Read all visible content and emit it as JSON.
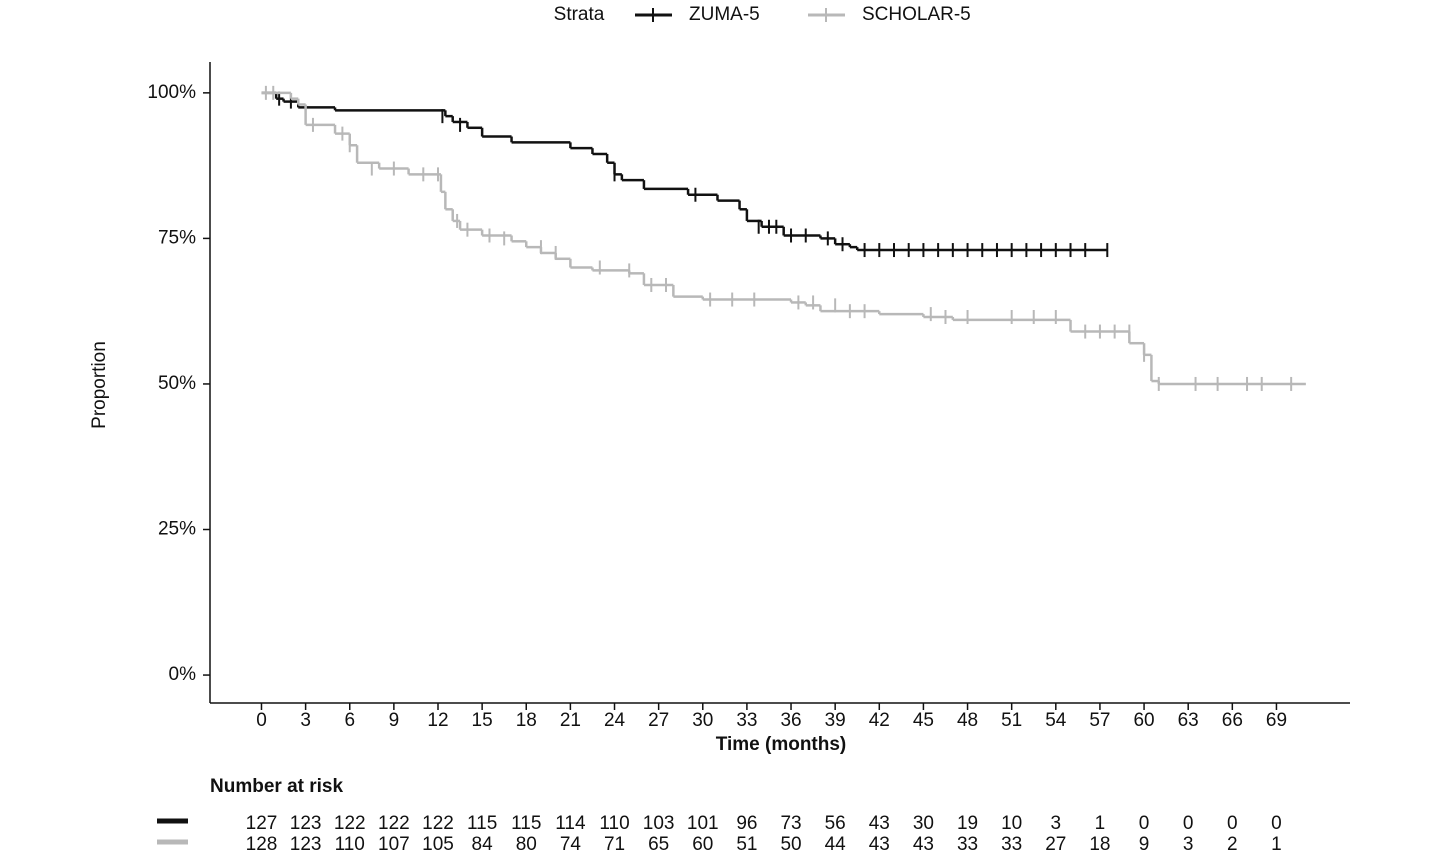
{
  "chart_data": {
    "type": "step",
    "legend_title": "Strata",
    "x_label": "Time (months)",
    "y_label": "Proportion",
    "xlim": [
      -3.5,
      74
    ],
    "ylim": [
      -4.8,
      105.3
    ],
    "xticks": [
      0,
      3,
      6,
      9,
      12,
      15,
      18,
      21,
      24,
      27,
      30,
      33,
      36,
      39,
      42,
      45,
      48,
      51,
      54,
      57,
      60,
      63,
      66,
      69
    ],
    "yticks": [
      {
        "value": 0,
        "label": "0%"
      },
      {
        "value": 25,
        "label": "25%"
      },
      {
        "value": 50,
        "label": "50%"
      },
      {
        "value": 75,
        "label": "75%"
      },
      {
        "value": 100,
        "label": "100%"
      }
    ],
    "series": [
      {
        "name": "ZUMA-5",
        "color": "#111111",
        "x": [
          0,
          1,
          1.5,
          2.5,
          5,
          12.5,
          13,
          14,
          15,
          17,
          21,
          22.5,
          23.5,
          24,
          24.5,
          26,
          29,
          31,
          32.5,
          33,
          34,
          35.5,
          38,
          39,
          40,
          40.5,
          57.5
        ],
        "values": [
          100,
          99,
          98.5,
          97.5,
          97,
          96,
          95,
          94,
          92.5,
          91.5,
          90.5,
          89.5,
          88,
          86,
          85,
          83.5,
          82.5,
          81.5,
          80,
          78,
          77,
          75.5,
          75,
          74,
          73.5,
          73,
          73
        ],
        "censor_x": [
          1.2,
          2,
          12.3,
          13.5,
          24,
          29.5,
          33.8,
          34.5,
          35,
          36,
          37,
          38.5,
          39.5,
          41,
          42,
          43,
          44,
          45,
          46,
          47,
          48,
          49,
          50,
          51,
          52,
          53,
          54,
          55,
          56,
          57.5
        ],
        "censor_values": [
          99,
          98.5,
          96,
          94.5,
          86,
          82.5,
          77,
          77,
          77,
          75.5,
          75.5,
          75,
          74,
          73,
          73,
          73,
          73,
          73,
          73,
          73,
          73,
          73,
          73,
          73,
          73,
          73,
          73,
          73,
          73,
          73
        ]
      },
      {
        "name": "SCHOLAR-5",
        "color": "#b8b8b8",
        "x": [
          0,
          2,
          2.5,
          3,
          5,
          6,
          6.5,
          8,
          10,
          12.2,
          12.5,
          13,
          13.5,
          15,
          17,
          18,
          19,
          20,
          21,
          22.5,
          25,
          26,
          28,
          30,
          36,
          37,
          38,
          42,
          45,
          47,
          55,
          59,
          60,
          60.5,
          61,
          71
        ],
        "values": [
          100,
          99,
          98,
          94.5,
          93,
          91,
          88,
          87,
          86,
          83,
          80,
          78,
          76.5,
          75.5,
          74.5,
          73.5,
          72.5,
          71.5,
          70,
          69.5,
          69,
          67,
          65,
          64.5,
          64,
          63.5,
          62.5,
          62,
          61.5,
          61,
          59,
          57,
          55,
          50.5,
          50,
          50
        ],
        "censor_x": [
          0.3,
          0.8,
          3.5,
          5.5,
          6,
          7.5,
          9,
          11,
          12,
          13.3,
          14,
          15.5,
          16.5,
          19,
          20,
          23,
          25,
          26.5,
          27.5,
          30.5,
          32,
          33.5,
          36.5,
          37.5,
          39,
          40,
          41,
          45.5,
          46.5,
          48,
          51,
          52.5,
          54,
          56,
          57,
          58,
          59,
          60,
          61,
          63.5,
          65,
          67,
          68,
          70
        ],
        "censor_values": [
          100,
          100,
          94.5,
          93,
          91,
          87,
          87,
          86,
          86,
          78,
          76.5,
          75.5,
          75,
          73.5,
          72.5,
          70,
          69.5,
          67,
          67,
          64.5,
          64.5,
          64.5,
          64,
          64,
          63.5,
          62.5,
          62.5,
          62,
          61.5,
          61.5,
          61.5,
          61.5,
          61.5,
          59,
          59,
          59,
          59,
          55,
          50,
          50,
          50,
          50,
          50,
          50
        ]
      }
    ]
  },
  "risk_table": {
    "title": "Number at risk",
    "rows": [
      {
        "values": [
          "127",
          "123",
          "122",
          "122",
          "122",
          "115",
          "115",
          "114",
          "110",
          "103",
          "101",
          "96",
          "73",
          "56",
          "43",
          "30",
          "19",
          "10",
          "3",
          "1",
          "0",
          "0",
          "0",
          "0"
        ]
      },
      {
        "values": [
          "128",
          "123",
          "110",
          "107",
          "105",
          "84",
          "80",
          "74",
          "71",
          "65",
          "60",
          "51",
          "50",
          "44",
          "43",
          "43",
          "33",
          "33",
          "27",
          "18",
          "9",
          "3",
          "2",
          "1"
        ]
      }
    ]
  }
}
